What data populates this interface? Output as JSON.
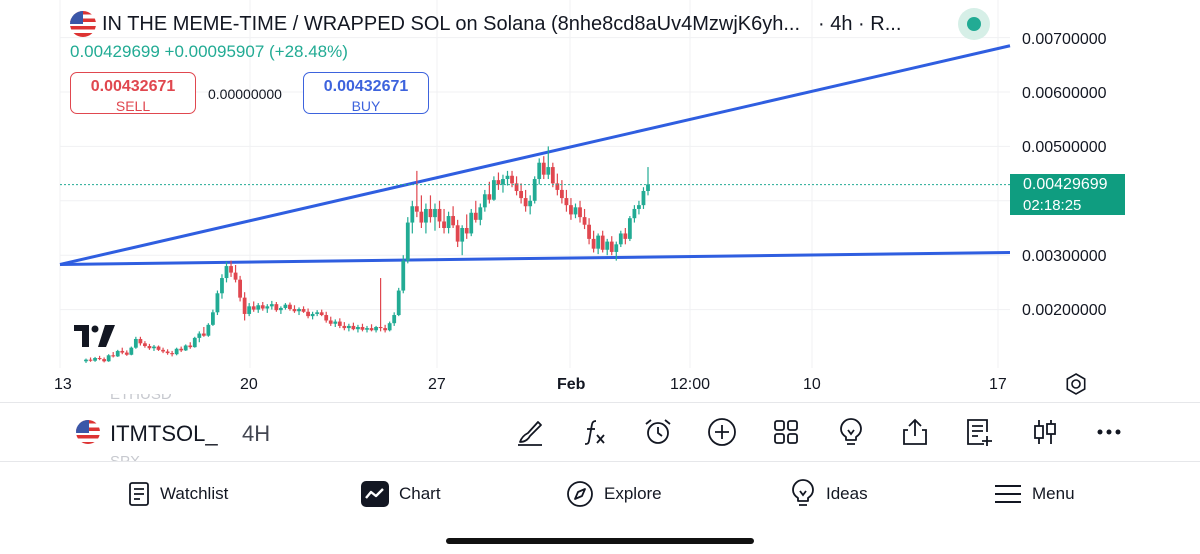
{
  "header": {
    "title": "IN THE MEME-TIME / WRAPPED SOL on Solana (8nhe8cd8aUv4MzwjK6yh...",
    "interval_suffix": "· 4h · R...",
    "change_line": "0.00429699 +0.00095907 (+28.48%)"
  },
  "trade": {
    "sell_price": "0.00432671",
    "sell_label": "SELL",
    "spread": "0.00000000",
    "buy_price": "0.00432671",
    "buy_label": "BUY"
  },
  "price_axis": {
    "labels": [
      "0.00700000",
      "0.00600000",
      "0.00500000",
      "0.00300000",
      "0.00200000"
    ],
    "last_price": "0.00429699",
    "countdown": "02:18:25"
  },
  "time_axis": {
    "labels": [
      "13",
      "20",
      "27",
      "Feb",
      "12:00",
      "10",
      "17"
    ]
  },
  "watermark": {
    "ghost_above": "ETHUSD",
    "ghost_below": "SPX"
  },
  "toolbar": {
    "symbol": "ITMTSOL_",
    "interval": "4H",
    "tools": [
      "brush-icon",
      "function-icon",
      "alarm-icon",
      "plus-circle-icon",
      "grid-icon",
      "lightbulb-icon",
      "share-icon",
      "notes-icon",
      "candles-icon",
      "more-icon"
    ]
  },
  "nav": {
    "watchlist": "Watchlist",
    "chart": "Chart",
    "explore": "Explore",
    "ideas": "Ideas",
    "menu": "Menu"
  },
  "colors": {
    "up": "#22ab94",
    "down": "#e0474f",
    "trendline": "#2f5ee0",
    "accent_blue": "#3d63dd"
  },
  "chart_data": {
    "type": "candlestick",
    "x_ticks": [
      "13",
      "20",
      "27",
      "Feb",
      "12:00",
      "10",
      "17"
    ],
    "y_ticks": [
      0.002,
      0.003,
      0.005,
      0.006,
      0.007
    ],
    "last_close": 0.00429699,
    "candles": [
      [
        0.00105,
        0.0011,
        0.00102,
        0.00108
      ],
      [
        0.00108,
        0.00112,
        0.00104,
        0.00106
      ],
      [
        0.00106,
        0.00113,
        0.00104,
        0.00111
      ],
      [
        0.00111,
        0.00115,
        0.00107,
        0.00109
      ],
      [
        0.00109,
        0.00112,
        0.00103,
        0.00105
      ],
      [
        0.00105,
        0.00118,
        0.00104,
        0.00116
      ],
      [
        0.00116,
        0.00122,
        0.00112,
        0.00114
      ],
      [
        0.00114,
        0.00126,
        0.00113,
        0.00124
      ],
      [
        0.00124,
        0.0013,
        0.00118,
        0.00121
      ],
      [
        0.00121,
        0.00125,
        0.00115,
        0.00117
      ],
      [
        0.00117,
        0.00132,
        0.00116,
        0.0013
      ],
      [
        0.0013,
        0.0015,
        0.00128,
        0.00146
      ],
      [
        0.00146,
        0.0015,
        0.00134,
        0.00138
      ],
      [
        0.00138,
        0.00142,
        0.0013,
        0.00133
      ],
      [
        0.00133,
        0.00137,
        0.00126,
        0.00129
      ],
      [
        0.00129,
        0.00135,
        0.00124,
        0.00132
      ],
      [
        0.00132,
        0.00134,
        0.00124,
        0.00126
      ],
      [
        0.00126,
        0.0013,
        0.0012,
        0.00123
      ],
      [
        0.00123,
        0.00127,
        0.00117,
        0.0012
      ],
      [
        0.0012,
        0.00124,
        0.00114,
        0.00118
      ],
      [
        0.00118,
        0.0013,
        0.00116,
        0.00128
      ],
      [
        0.00128,
        0.00132,
        0.00122,
        0.00125
      ],
      [
        0.00125,
        0.00136,
        0.00124,
        0.00134
      ],
      [
        0.00134,
        0.0014,
        0.00128,
        0.00131
      ],
      [
        0.00131,
        0.0015,
        0.0013,
        0.00148
      ],
      [
        0.00148,
        0.0016,
        0.0014,
        0.00156
      ],
      [
        0.00156,
        0.00168,
        0.0015,
        0.00152
      ],
      [
        0.00152,
        0.00175,
        0.0015,
        0.00172
      ],
      [
        0.00172,
        0.002,
        0.0017,
        0.00195
      ],
      [
        0.00195,
        0.00235,
        0.0019,
        0.0023
      ],
      [
        0.0023,
        0.00265,
        0.0022,
        0.00258
      ],
      [
        0.00258,
        0.00288,
        0.0025,
        0.0028
      ],
      [
        0.0028,
        0.0029,
        0.0026,
        0.00268
      ],
      [
        0.00268,
        0.00282,
        0.0025,
        0.00255
      ],
      [
        0.00255,
        0.00262,
        0.00215,
        0.00222
      ],
      [
        0.00222,
        0.00232,
        0.0018,
        0.00192
      ],
      [
        0.00192,
        0.00212,
        0.00188,
        0.00206
      ],
      [
        0.00206,
        0.00215,
        0.00196,
        0.002
      ],
      [
        0.002,
        0.00212,
        0.00194,
        0.00208
      ],
      [
        0.00208,
        0.00214,
        0.00198,
        0.00202
      ],
      [
        0.00202,
        0.0021,
        0.00194,
        0.00206
      ],
      [
        0.00206,
        0.00216,
        0.002,
        0.0021
      ],
      [
        0.0021,
        0.00214,
        0.00196,
        0.00199
      ],
      [
        0.00199,
        0.00206,
        0.00192,
        0.00203
      ],
      [
        0.00203,
        0.00212,
        0.002,
        0.00209
      ],
      [
        0.00209,
        0.00213,
        0.00198,
        0.00201
      ],
      [
        0.00201,
        0.00208,
        0.00194,
        0.00197
      ],
      [
        0.00197,
        0.00204,
        0.0019,
        0.00201
      ],
      [
        0.00201,
        0.00206,
        0.00194,
        0.00196
      ],
      [
        0.00196,
        0.00202,
        0.00184,
        0.00188
      ],
      [
        0.00188,
        0.00196,
        0.00182,
        0.00192
      ],
      [
        0.00192,
        0.00199,
        0.00188,
        0.00195
      ],
      [
        0.00195,
        0.002,
        0.00188,
        0.0019
      ],
      [
        0.0019,
        0.00196,
        0.00176,
        0.0018
      ],
      [
        0.0018,
        0.00187,
        0.0017,
        0.00174
      ],
      [
        0.00174,
        0.00182,
        0.00168,
        0.00178
      ],
      [
        0.00178,
        0.00184,
        0.00166,
        0.0017
      ],
      [
        0.0017,
        0.00177,
        0.00162,
        0.00166
      ],
      [
        0.00166,
        0.00174,
        0.0016,
        0.0017
      ],
      [
        0.0017,
        0.00176,
        0.00162,
        0.00164
      ],
      [
        0.00164,
        0.00172,
        0.00158,
        0.00168
      ],
      [
        0.00168,
        0.00174,
        0.0016,
        0.00163
      ],
      [
        0.00163,
        0.0017,
        0.00158,
        0.00166
      ],
      [
        0.00166,
        0.00173,
        0.0016,
        0.00162
      ],
      [
        0.00162,
        0.0017,
        0.00158,
        0.00168
      ],
      [
        0.00168,
        0.00258,
        0.0016,
        0.00166
      ],
      [
        0.00166,
        0.00172,
        0.00158,
        0.00162
      ],
      [
        0.00162,
        0.00178,
        0.0016,
        0.00175
      ],
      [
        0.00175,
        0.00195,
        0.0017,
        0.0019
      ],
      [
        0.0019,
        0.0024,
        0.00188,
        0.00235
      ],
      [
        0.00235,
        0.003,
        0.0023,
        0.0029
      ],
      [
        0.0029,
        0.0037,
        0.00285,
        0.0036
      ],
      [
        0.0036,
        0.004,
        0.0034,
        0.0039
      ],
      [
        0.0039,
        0.00455,
        0.0037,
        0.0038
      ],
      [
        0.0038,
        0.0041,
        0.0035,
        0.0036
      ],
      [
        0.0036,
        0.00395,
        0.0034,
        0.00385
      ],
      [
        0.00385,
        0.0041,
        0.0036,
        0.0037
      ],
      [
        0.0037,
        0.00395,
        0.00345,
        0.00385
      ],
      [
        0.00385,
        0.004,
        0.0035,
        0.00362
      ],
      [
        0.00362,
        0.00385,
        0.0034,
        0.0035
      ],
      [
        0.0035,
        0.0038,
        0.0034,
        0.00372
      ],
      [
        0.00372,
        0.0039,
        0.0035,
        0.00355
      ],
      [
        0.00355,
        0.00365,
        0.00315,
        0.00325
      ],
      [
        0.00325,
        0.00355,
        0.003,
        0.0035
      ],
      [
        0.0035,
        0.00375,
        0.0033,
        0.0034
      ],
      [
        0.0034,
        0.00385,
        0.00335,
        0.00378
      ],
      [
        0.00378,
        0.004,
        0.0036,
        0.00365
      ],
      [
        0.00365,
        0.00395,
        0.00355,
        0.00388
      ],
      [
        0.00388,
        0.0042,
        0.0038,
        0.00412
      ],
      [
        0.00412,
        0.00435,
        0.00395,
        0.00402
      ],
      [
        0.00402,
        0.00445,
        0.004,
        0.00438
      ],
      [
        0.00438,
        0.00452,
        0.0042,
        0.0043
      ],
      [
        0.0043,
        0.00448,
        0.00415,
        0.0044
      ],
      [
        0.0044,
        0.00455,
        0.00428,
        0.00446
      ],
      [
        0.00446,
        0.00455,
        0.00425,
        0.00432
      ],
      [
        0.00432,
        0.00445,
        0.0041,
        0.00418
      ],
      [
        0.00418,
        0.00432,
        0.00395,
        0.00405
      ],
      [
        0.00405,
        0.0042,
        0.0038,
        0.0039
      ],
      [
        0.0039,
        0.0041,
        0.00375,
        0.004
      ],
      [
        0.004,
        0.00445,
        0.00395,
        0.0044
      ],
      [
        0.0044,
        0.00478,
        0.0043,
        0.0047
      ],
      [
        0.0047,
        0.00482,
        0.0044,
        0.00448
      ],
      [
        0.00448,
        0.005,
        0.0044,
        0.00462
      ],
      [
        0.00462,
        0.0047,
        0.00425,
        0.00432
      ],
      [
        0.00432,
        0.0045,
        0.0041,
        0.0042
      ],
      [
        0.0042,
        0.00438,
        0.00395,
        0.00405
      ],
      [
        0.00405,
        0.0042,
        0.0038,
        0.00392
      ],
      [
        0.00392,
        0.00405,
        0.00365,
        0.00375
      ],
      [
        0.00375,
        0.00395,
        0.00368,
        0.00388
      ],
      [
        0.00388,
        0.004,
        0.0036,
        0.0037
      ],
      [
        0.0037,
        0.00385,
        0.00348,
        0.00356
      ],
      [
        0.00356,
        0.00368,
        0.0032,
        0.0033
      ],
      [
        0.0033,
        0.00345,
        0.00305,
        0.00312
      ],
      [
        0.00312,
        0.0034,
        0.00302,
        0.00336
      ],
      [
        0.00336,
        0.00345,
        0.00305,
        0.0031
      ],
      [
        0.0031,
        0.0033,
        0.003,
        0.00325
      ],
      [
        0.00325,
        0.00335,
        0.003,
        0.00306
      ],
      [
        0.00306,
        0.00325,
        0.0029,
        0.0032
      ],
      [
        0.0032,
        0.00345,
        0.00315,
        0.0034
      ],
      [
        0.0034,
        0.0035,
        0.0032,
        0.0033
      ],
      [
        0.0033,
        0.00372,
        0.00326,
        0.00368
      ],
      [
        0.00368,
        0.00392,
        0.0036,
        0.00385
      ],
      [
        0.00385,
        0.004,
        0.00375,
        0.00392
      ],
      [
        0.00392,
        0.00425,
        0.00385,
        0.00418
      ],
      [
        0.00418,
        0.00462,
        0.0041,
        0.0043
      ]
    ],
    "trendlines": [
      {
        "x_start": 0,
        "y_start": 0.00283,
        "x_end": 1.0,
        "y_end": 0.00305
      },
      {
        "x_start": 0,
        "y_start": 0.00283,
        "x_end": 1.0,
        "y_end": 0.00685
      }
    ]
  }
}
